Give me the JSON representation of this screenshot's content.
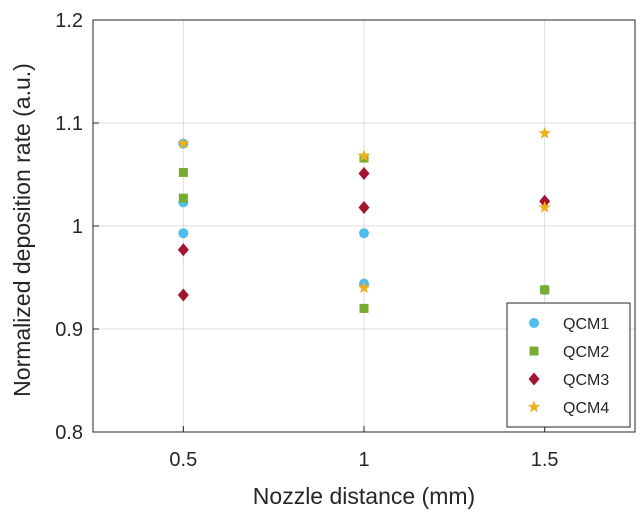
{
  "chart_data": {
    "type": "scatter",
    "xlabel": "Nozzle distance (mm)",
    "ylabel": "Normalized deposition rate (a.u.)",
    "xlim": [
      0.25,
      1.75
    ],
    "ylim": [
      0.8,
      1.2
    ],
    "xticks": [
      0.5,
      1,
      1.5
    ],
    "xtick_labels": [
      "0.5",
      "1",
      "1.5"
    ],
    "yticks": [
      0.8,
      0.9,
      1.0,
      1.1,
      1.2
    ],
    "ytick_labels": [
      "0.8",
      "0.9",
      "1",
      "1.1",
      "1.2"
    ],
    "grid": true,
    "legend_position": "lower-right",
    "series": [
      {
        "name": "QCM1",
        "marker": "circle",
        "color": "#4DBEEE",
        "x": [
          0.5,
          0.5,
          0.5,
          1,
          1,
          1.5
        ],
        "y": [
          1.08,
          1.023,
          0.993,
          0.993,
          0.944,
          0.938
        ]
      },
      {
        "name": "QCM2",
        "marker": "square",
        "color": "#77AC30",
        "x": [
          0.5,
          0.5,
          1,
          1,
          1.5
        ],
        "y": [
          1.052,
          1.027,
          1.066,
          0.92,
          0.938
        ]
      },
      {
        "name": "QCM3",
        "marker": "diamond",
        "color": "#A2142F",
        "x": [
          0.5,
          0.5,
          1,
          1,
          1.5
        ],
        "y": [
          0.977,
          0.933,
          1.051,
          1.018,
          1.024
        ]
      },
      {
        "name": "QCM4",
        "marker": "star",
        "color": "#EDB120",
        "x": [
          0.5,
          1,
          1,
          1.5,
          1.5
        ],
        "y": [
          1.08,
          1.068,
          0.94,
          1.09,
          1.018
        ]
      }
    ]
  }
}
